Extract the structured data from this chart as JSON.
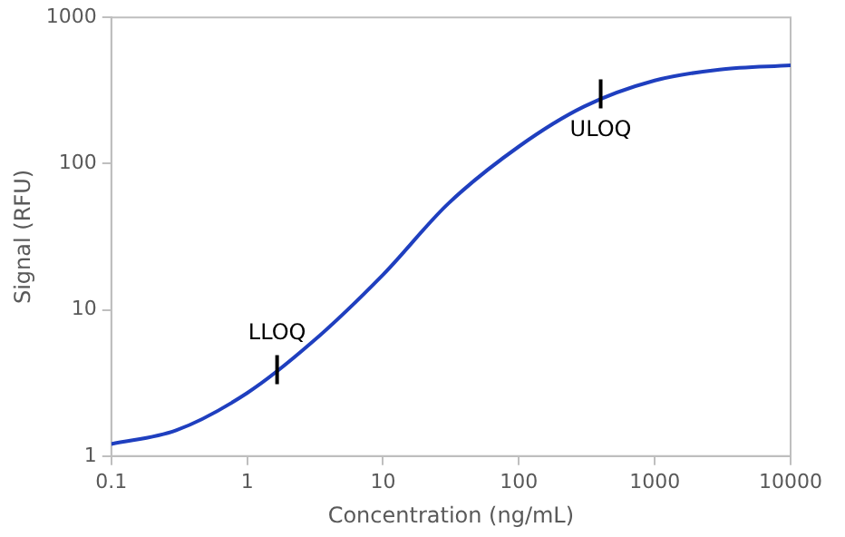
{
  "chart_data": {
    "type": "line",
    "xlabel": "Concentration (ng/mL)",
    "ylabel": "Signal (RFU)",
    "log": "xy",
    "grid": false,
    "legend": false,
    "marker": "none",
    "line_style": "solid",
    "xlim": [
      0.1,
      10000
    ],
    "xticks": [
      0.1,
      1,
      10,
      100,
      1000,
      10000
    ],
    "ylim": [
      1,
      1000
    ],
    "yticks": [
      1,
      10,
      100,
      1000
    ],
    "series": [
      {
        "color": "#1f3fbf",
        "x": [
          0.1,
          0.3,
          1,
          3,
          10,
          30,
          100,
          300,
          1000,
          3000,
          10000
        ],
        "values": [
          1.21,
          1.5,
          2.7,
          6,
          17.4,
          53,
          131,
          245,
          370,
          440,
          470
        ]
      }
    ],
    "annotations": [
      {
        "text": "LLOQ",
        "x": 1.66,
        "y": 3.9
      },
      {
        "text": "ULOQ",
        "x": 400,
        "y": 300
      }
    ]
  }
}
